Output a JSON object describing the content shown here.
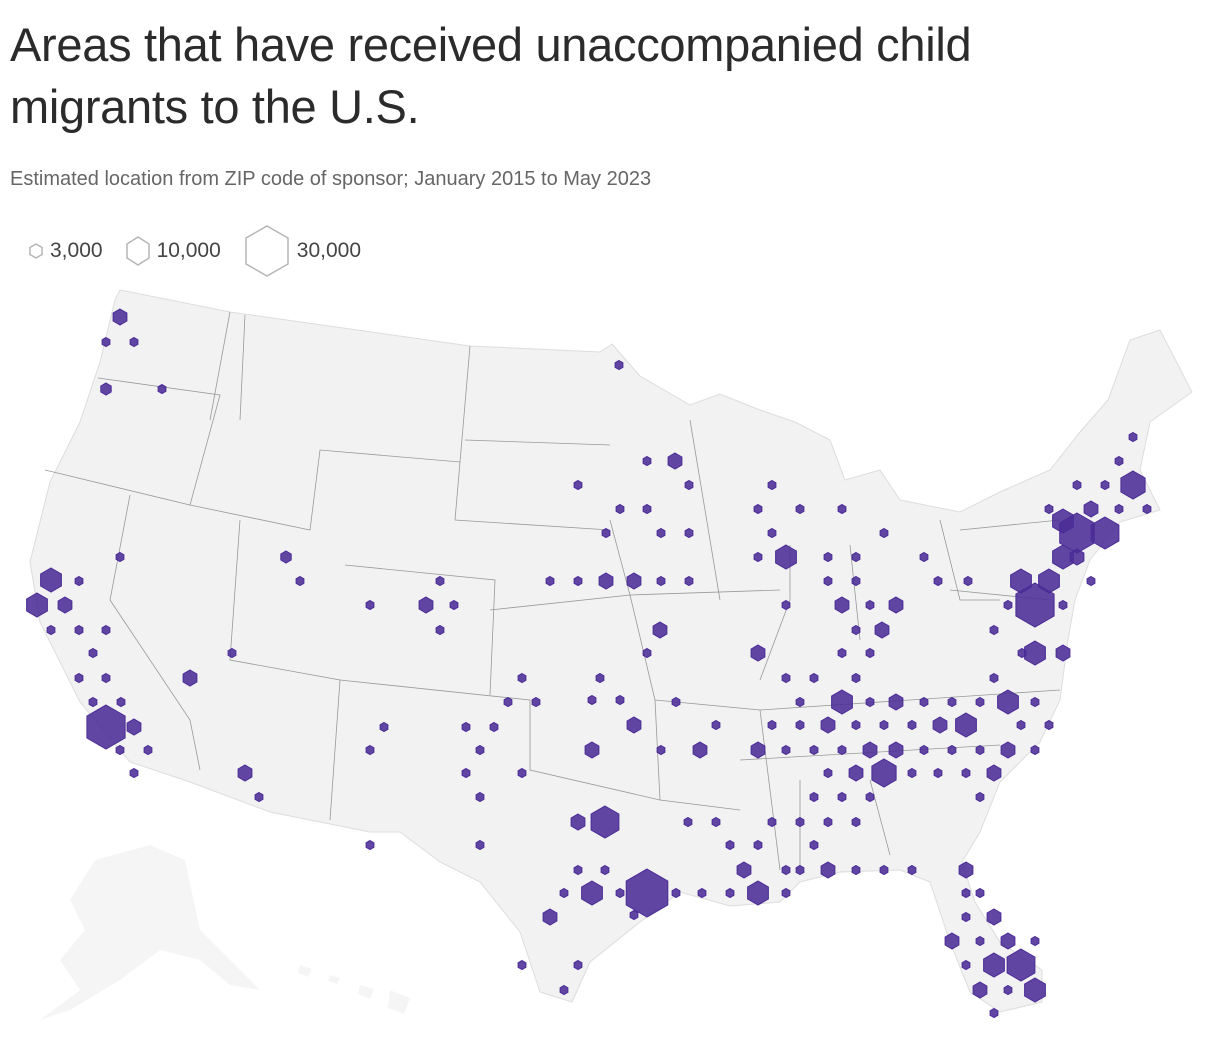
{
  "title": "Areas that have received unaccompanied child migrants to the U.S.",
  "subtitle": "Estimated location from ZIP code of sponsor; January 2015 to May 2023",
  "legend": [
    {
      "label": "3,000",
      "value": 3000
    },
    {
      "label": "10,000",
      "value": 10000
    },
    {
      "label": "30,000",
      "value": 30000
    }
  ],
  "colors": {
    "hex_fill": "#4b2c96",
    "land": "#f2f2f2",
    "border": "#9a9a9a",
    "legend_stroke": "#b5b5b5"
  }
}
